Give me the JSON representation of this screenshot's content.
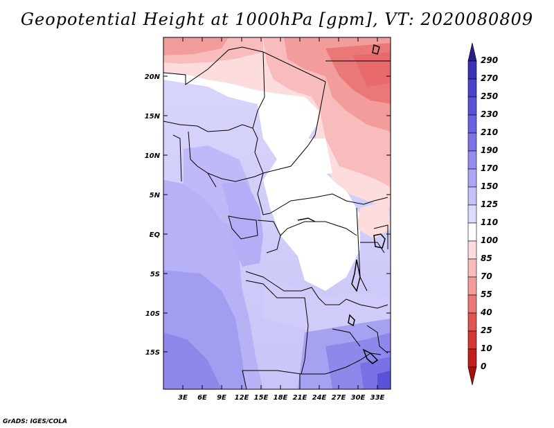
{
  "title": "Geopotential Height at 1000hPa [gpm], VT: 2020080809",
  "credit": "GrADS: IGES/COLA",
  "map": {
    "lat_labels": [
      "20N",
      "15N",
      "10N",
      "5N",
      "EQ",
      "5S",
      "10S",
      "15S"
    ],
    "lon_labels": [
      "3E",
      "6E",
      "9E",
      "12E",
      "15E",
      "18E",
      "21E",
      "24E",
      "27E",
      "30E",
      "33E"
    ]
  },
  "colorbar": {
    "levels": [
      "290",
      "270",
      "250",
      "230",
      "210",
      "190",
      "170",
      "150",
      "125",
      "110",
      "100",
      "85",
      "70",
      "55",
      "40",
      "25",
      "10",
      "0"
    ],
    "colors": [
      "#2a1e8a",
      "#3b31b5",
      "#4a42cc",
      "#5a52d6",
      "#6a62de",
      "#7c74e6",
      "#948cee",
      "#aca6f4",
      "#c6c2f8",
      "#dedcfc",
      "#ffffff",
      "#fcdcdc",
      "#f8bcbc",
      "#f29c9c",
      "#ea7878",
      "#e05454",
      "#d43434",
      "#c21e1e",
      "#a81010"
    ]
  }
}
